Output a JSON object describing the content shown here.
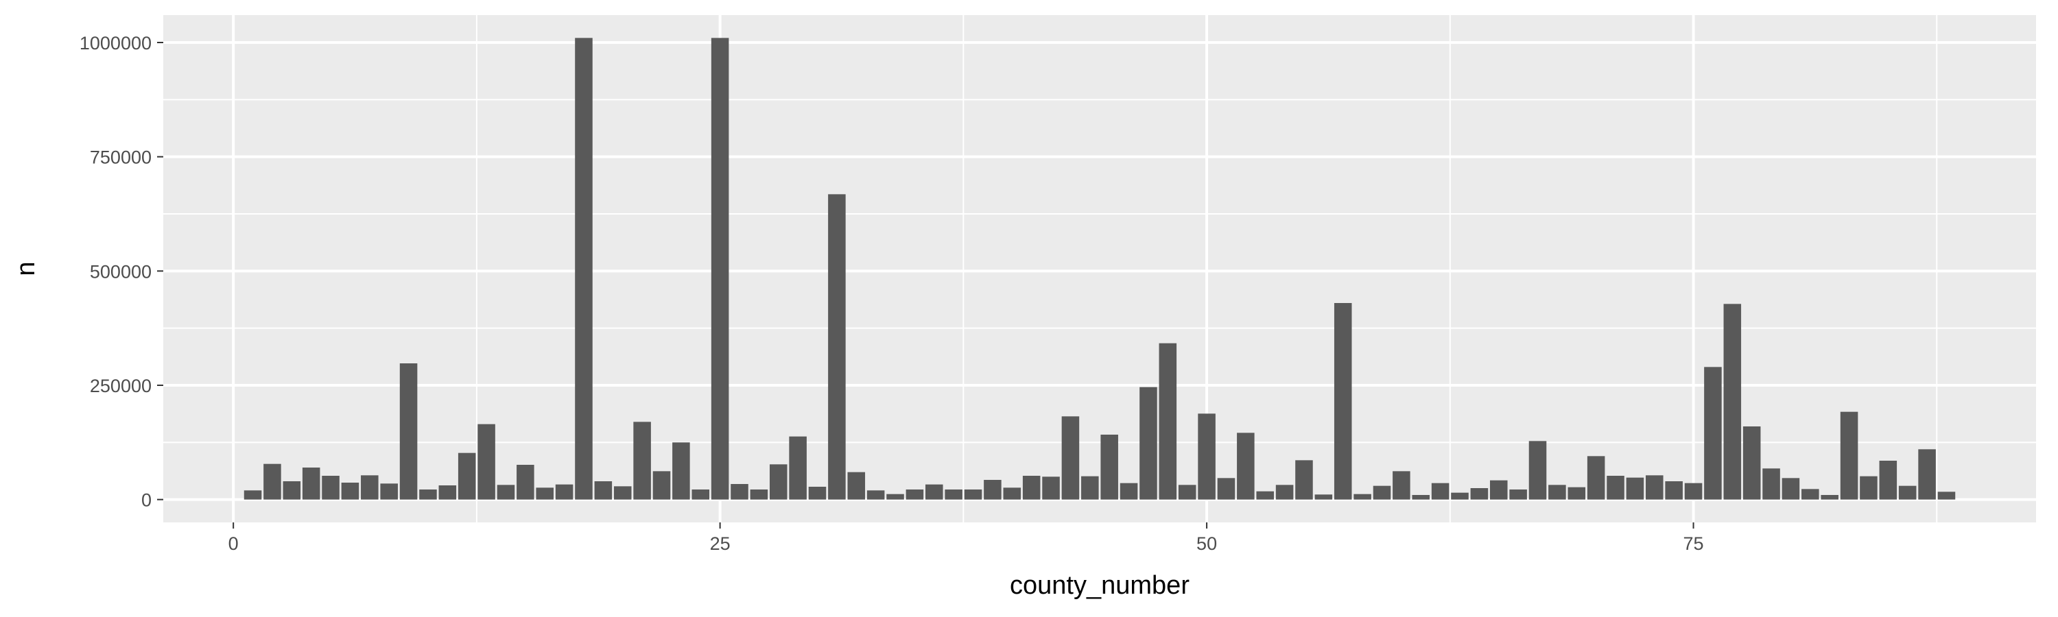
{
  "chart_data": {
    "type": "bar",
    "title": "",
    "xlabel": "county_number",
    "ylabel": "n",
    "xlim": [
      -3.6,
      92.6
    ],
    "ylim": [
      -50000,
      1060000
    ],
    "x_ticks": [
      0,
      25,
      50,
      75
    ],
    "x_tick_labels": [
      "0",
      "25",
      "50",
      "75"
    ],
    "y_ticks": [
      0,
      250000,
      500000,
      750000,
      1000000
    ],
    "y_tick_labels": [
      "0",
      "250000",
      "500000",
      "750000",
      "1000000"
    ],
    "grid": true,
    "legend": "none",
    "x": [
      1,
      2,
      3,
      4,
      5,
      6,
      7,
      8,
      9,
      10,
      11,
      12,
      13,
      14,
      15,
      16,
      17,
      18,
      19,
      20,
      21,
      22,
      23,
      24,
      25,
      26,
      27,
      28,
      29,
      30,
      31,
      32,
      33,
      34,
      35,
      36,
      37,
      38,
      39,
      40,
      41,
      42,
      43,
      44,
      45,
      46,
      47,
      48,
      49,
      50,
      51,
      52,
      53,
      54,
      55,
      56,
      57,
      58,
      59,
      60,
      61,
      62,
      63,
      64,
      65,
      66,
      67,
      68,
      69,
      70,
      71,
      72,
      73,
      74,
      75,
      76,
      77,
      78,
      79,
      80,
      81,
      82,
      83,
      84,
      85,
      86,
      87,
      88
    ],
    "values": [
      20000,
      78000,
      40000,
      70000,
      52000,
      37000,
      53000,
      35000,
      298000,
      22000,
      31000,
      102000,
      165000,
      32000,
      76000,
      26000,
      33000,
      1010000,
      40000,
      29000,
      170000,
      62000,
      125000,
      22000,
      1010000,
      34000,
      22000,
      77000,
      138000,
      28000,
      668000,
      60000,
      20000,
      12000,
      22000,
      33000,
      22000,
      22000,
      43000,
      26000,
      52000,
      50000,
      182000,
      51000,
      142000,
      36000,
      246000,
      342000,
      32000,
      188000,
      47000,
      146000,
      18000,
      32000,
      86000,
      11000,
      430000,
      12000,
      30000,
      62000,
      10000,
      36000,
      15000,
      25000,
      42000,
      22000,
      128000,
      32000,
      27000,
      95000,
      52000,
      48000,
      53000,
      40000,
      36000,
      290000,
      428000,
      160000,
      68000,
      47000,
      23000,
      10000,
      192000,
      51000,
      85000,
      30000,
      110000,
      17000
    ],
    "colors": {
      "panel": "#ebebeb",
      "grid_major": "#ffffff",
      "bar": "#595959",
      "tick_label": "#4d4d4d",
      "tick_mark": "#333333"
    }
  }
}
